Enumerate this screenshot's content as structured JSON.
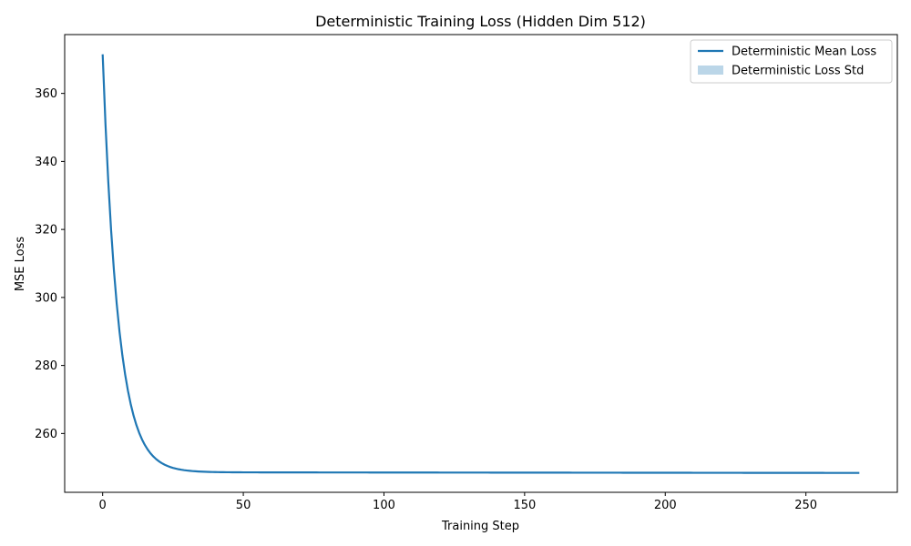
{
  "chart_data": {
    "type": "line",
    "title": "Deterministic Training Loss (Hidden Dim 512)",
    "xlabel": "Training Step",
    "ylabel": "MSE Loss",
    "xlim": [
      -13.5,
      282.5
    ],
    "ylim": [
      242.7,
      377.3
    ],
    "xticks": [
      0,
      50,
      100,
      150,
      200,
      250
    ],
    "yticks": [
      260,
      280,
      300,
      320,
      340,
      360
    ],
    "grid": false,
    "legend_position": "top-right",
    "series": [
      {
        "name": "Deterministic Mean Loss",
        "color": "#1f77b4",
        "model": "exponential-decay",
        "start_value": 371.5,
        "plateau_value": 248.6,
        "final_value": 248.4,
        "decay_constant_steps": 5.5,
        "x_start": 0,
        "x_end": 269
      }
    ],
    "legend": [
      {
        "label": "Deterministic Mean Loss",
        "kind": "line",
        "color": "#1f77b4"
      },
      {
        "label": "Deterministic Loss Std",
        "kind": "patch",
        "color": "#1f77b4",
        "alpha": 0.3
      }
    ]
  }
}
